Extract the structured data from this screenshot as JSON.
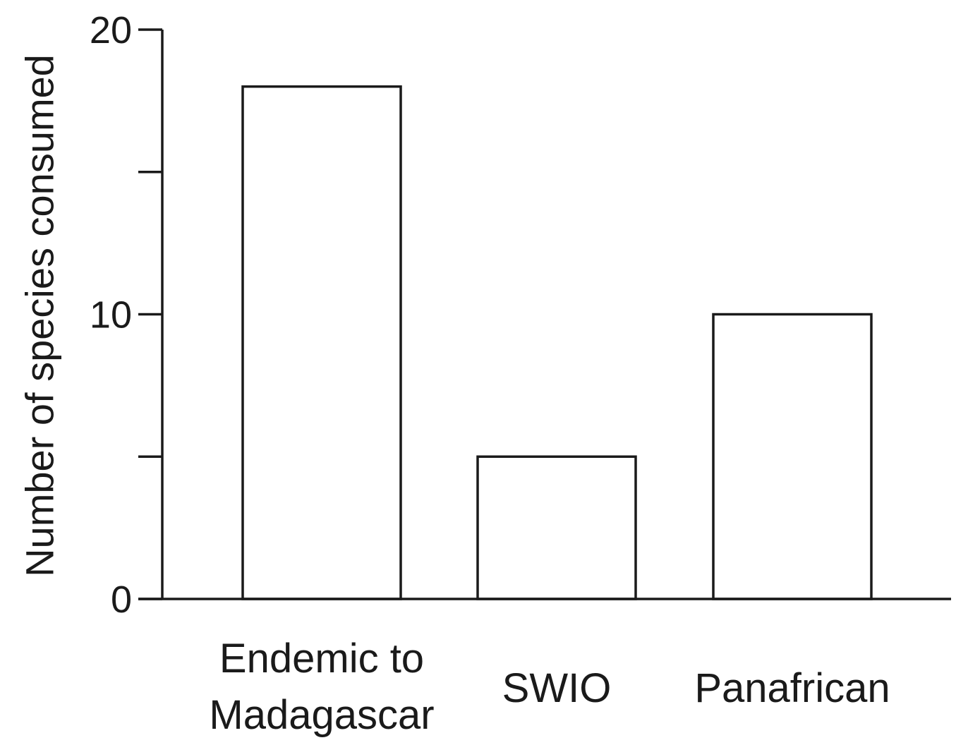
{
  "chart_data": {
    "type": "bar",
    "categories": [
      [
        "Endemic to",
        "Madagascar"
      ],
      [
        "SWIO"
      ],
      [
        "Panafrican"
      ]
    ],
    "values": [
      18,
      5,
      10
    ],
    "title": "",
    "xlabel": "",
    "ylabel": "Number of species consumed",
    "ylim": [
      0,
      20
    ],
    "yticks": [
      0,
      5,
      10,
      15,
      20
    ],
    "ytick_labels": [
      "0",
      "",
      "10",
      "",
      "20"
    ],
    "grid": false,
    "legend": "none",
    "colors": {
      "bar_fill": "#ffffff",
      "bar_stroke": "#1a1a1a",
      "axis": "#1a1a1a"
    }
  }
}
